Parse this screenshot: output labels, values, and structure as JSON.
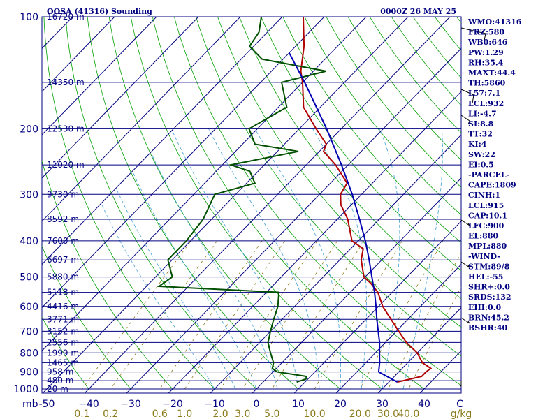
{
  "header": {
    "station": "OOSA (41316) Sounding",
    "time": "0000Z 26 MAY 25"
  },
  "indices": [
    "WMO:41316",
    "FRZ:580",
    "WB0:646",
    "PW:1.29",
    "RH:35.4",
    "MAXT:44.4",
    "TH:5860",
    "L57:7.1",
    "LCL:932",
    "LI:-4.7",
    "SI:8.8",
    "TT:32",
    "KI:4",
    "SW:22",
    "EI:0.5",
    "-PARCEL-",
    "CAPE:1809",
    "CINH:1",
    "LCL:915",
    "CAP:10.1",
    "LFC:900",
    "EL:880",
    "MPL:880",
    "-WIND-",
    "STM:89/8",
    "HEL:-55",
    "SHR+:0.0",
    "SRDS:132",
    "EHI:0.0",
    "BRN:45.2",
    "BSHR:40"
  ],
  "colors": {
    "axis": "#000080",
    "isobar": "#000080",
    "isotherm": "#000080",
    "dry_adiabat": "#00a000",
    "moist_adiabat": "#40a0d0",
    "mixing_ratio": "#8b7a1a",
    "temperature": "#b00000",
    "dewpoint": "#005000",
    "parcel": "#0000b0"
  },
  "chart_data": {
    "type": "line",
    "title": "OOSA (41316) Sounding",
    "subtitle": "0000Z 26 MAY 25",
    "xlabel": "C",
    "ylabel": "mb",
    "pressure_axis": {
      "scale": "log",
      "range_mb": [
        100,
        1000
      ],
      "ticks": [
        100,
        200,
        300,
        400,
        500,
        600,
        700,
        800,
        900,
        1000
      ],
      "tick_labels": [
        "100",
        "200",
        "300",
        "400",
        "500",
        "600",
        "700",
        "800",
        "900",
        "1000"
      ]
    },
    "temperature_axis": {
      "range_c": [
        -50,
        50
      ],
      "ticks": [
        -50,
        -40,
        -30,
        -20,
        -10,
        0,
        10,
        20,
        30,
        40
      ],
      "tick_labels": [
        "-50",
        "−40",
        "−30",
        "−20",
        "−10",
        "0",
        "10",
        "20",
        "30",
        "40"
      ],
      "unit_label": "C",
      "pressure_unit_label": "mb"
    },
    "mixing_ratio_axis": {
      "unit_label": "g/kg",
      "values": [
        0.1,
        0.2,
        0.6,
        1.0,
        2.0,
        3.0,
        5.0,
        10.0,
        20.0,
        30.0,
        40.0
      ],
      "labels": [
        "0.1",
        "0.2",
        "0.6",
        "1.0",
        "2.0",
        "3.0",
        "5.0",
        "10.0",
        "20.0",
        "30.0",
        "40.0"
      ]
    },
    "height_levels": [
      {
        "p": 100,
        "label": "16720 m"
      },
      {
        "p": 150,
        "label": "14350 m"
      },
      {
        "p": 200,
        "label": "12530 m"
      },
      {
        "p": 250,
        "label": "11020 m"
      },
      {
        "p": 300,
        "label": "9730 m"
      },
      {
        "p": 350,
        "label": "8592 m"
      },
      {
        "p": 400,
        "label": "7600 m"
      },
      {
        "p": 450,
        "label": "6697 m"
      },
      {
        "p": 500,
        "label": "5880 m"
      },
      {
        "p": 550,
        "label": "5118 m"
      },
      {
        "p": 600,
        "label": "4416 m"
      },
      {
        "p": 650,
        "label": "3771 m"
      },
      {
        "p": 700,
        "label": "3152 m"
      },
      {
        "p": 750,
        "label": "2556 m"
      },
      {
        "p": 800,
        "label": "1999 m"
      },
      {
        "p": 850,
        "label": "1465 m"
      },
      {
        "p": 900,
        "label": "958 m"
      },
      {
        "p": 950,
        "label": "480 m"
      },
      {
        "p": 1000,
        "label": "20 m"
      }
    ],
    "series": [
      {
        "name": "Temperature",
        "points": [
          {
            "p": 958,
            "t": 32.0
          },
          {
            "p": 925,
            "t": 36.5
          },
          {
            "p": 900,
            "t": 36.5
          },
          {
            "p": 880,
            "t": 36.8
          },
          {
            "p": 850,
            "t": 33.5
          },
          {
            "p": 800,
            "t": 30.0
          },
          {
            "p": 750,
            "t": 25.0
          },
          {
            "p": 700,
            "t": 20.6
          },
          {
            "p": 600,
            "t": 11.0
          },
          {
            "p": 550,
            "t": 6.6
          },
          {
            "p": 520,
            "t": 2.8
          },
          {
            "p": 500,
            "t": -0.3
          },
          {
            "p": 450,
            "t": -4.9
          },
          {
            "p": 420,
            "t": -7.0
          },
          {
            "p": 400,
            "t": -11.5
          },
          {
            "p": 350,
            "t": -17.5
          },
          {
            "p": 320,
            "t": -22.5
          },
          {
            "p": 300,
            "t": -25.0
          },
          {
            "p": 280,
            "t": -26.0
          },
          {
            "p": 250,
            "t": -33.0
          },
          {
            "p": 230,
            "t": -39.0
          },
          {
            "p": 220,
            "t": -40.0
          },
          {
            "p": 200,
            "t": -46.0
          },
          {
            "p": 175,
            "t": -54.0
          },
          {
            "p": 150,
            "t": -60.0
          },
          {
            "p": 140,
            "t": -63.0
          },
          {
            "p": 120,
            "t": -68.0
          },
          {
            "p": 100,
            "t": -75.0
          }
        ]
      },
      {
        "name": "Dewpoint",
        "points": [
          {
            "p": 958,
            "t": 8.0
          },
          {
            "p": 940,
            "t": 9.5
          },
          {
            "p": 925,
            "t": 9.0
          },
          {
            "p": 900,
            "t": 1.0
          },
          {
            "p": 880,
            "t": -1.0
          },
          {
            "p": 850,
            "t": -2.0
          },
          {
            "p": 800,
            "t": -5.0
          },
          {
            "p": 750,
            "t": -8.0
          },
          {
            "p": 700,
            "t": -10.0
          },
          {
            "p": 650,
            "t": -12.0
          },
          {
            "p": 600,
            "t": -14.0
          },
          {
            "p": 550,
            "t": -17.0
          },
          {
            "p": 530,
            "t": -47.0
          },
          {
            "p": 500,
            "t": -46.0
          },
          {
            "p": 450,
            "t": -51.0
          },
          {
            "p": 400,
            "t": -51.0
          },
          {
            "p": 350,
            "t": -52.0
          },
          {
            "p": 300,
            "t": -55.0
          },
          {
            "p": 280,
            "t": -48.0
          },
          {
            "p": 260,
            "t": -52.0
          },
          {
            "p": 250,
            "t": -58.0
          },
          {
            "p": 230,
            "t": -45.0
          },
          {
            "p": 220,
            "t": -57.0
          },
          {
            "p": 200,
            "t": -62.0
          },
          {
            "p": 175,
            "t": -58.0
          },
          {
            "p": 150,
            "t": -65.0
          },
          {
            "p": 140,
            "t": -57.0
          },
          {
            "p": 130,
            "t": -75.0
          },
          {
            "p": 120,
            "t": -81.0
          },
          {
            "p": 110,
            "t": -82.0
          },
          {
            "p": 100,
            "t": -85.0
          }
        ]
      },
      {
        "name": "Parcel",
        "points": [
          {
            "p": 958,
            "t": 32.0
          },
          {
            "p": 930,
            "t": 28.8
          },
          {
            "p": 900,
            "t": 25.2
          },
          {
            "p": 850,
            "t": 23.3
          },
          {
            "p": 800,
            "t": 21.0
          },
          {
            "p": 750,
            "t": 18.6
          },
          {
            "p": 700,
            "t": 15.7
          },
          {
            "p": 650,
            "t": 12.6
          },
          {
            "p": 600,
            "t": 9.4
          },
          {
            "p": 550,
            "t": 5.8
          },
          {
            "p": 500,
            "t": 1.6
          },
          {
            "p": 450,
            "t": -3.0
          },
          {
            "p": 400,
            "t": -8.3
          },
          {
            "p": 350,
            "t": -14.7
          },
          {
            "p": 300,
            "t": -22.2
          },
          {
            "p": 250,
            "t": -31.6
          },
          {
            "p": 200,
            "t": -43.5
          },
          {
            "p": 150,
            "t": -59.5
          },
          {
            "p": 125,
            "t": -70.0
          }
        ]
      }
    ],
    "grid": true
  }
}
